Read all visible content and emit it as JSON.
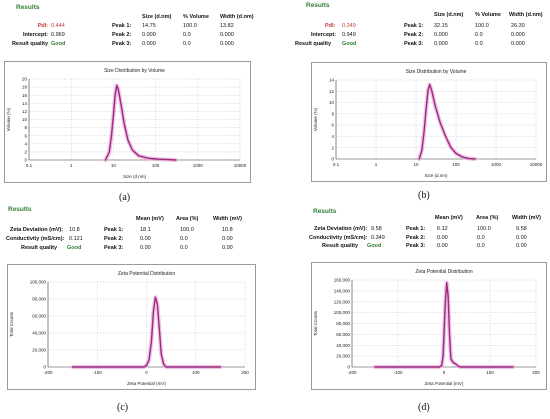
{
  "panels": [
    {
      "id": "a",
      "results_title": "Results",
      "left": [
        {
          "label": "PdI:",
          "value": "0.444"
        },
        {
          "label": "Intercept:",
          "value": "0.969"
        },
        {
          "label": "Result quality",
          "value": "Good"
        }
      ],
      "columns": [
        "Size (d.nm)",
        "% Volume",
        "Width (d.nm)"
      ],
      "peaks": [
        {
          "label": "Peak 1:",
          "values": [
            "14.75",
            "100.0",
            "13.82"
          ]
        },
        {
          "label": "Peak 2:",
          "values": [
            "0.000",
            "0.0",
            "0.000"
          ]
        },
        {
          "label": "Peak 3:",
          "values": [
            "0.000",
            "0.0",
            "0.000"
          ]
        }
      ],
      "caption": "(a)"
    },
    {
      "id": "b",
      "results_title": "Results",
      "left": [
        {
          "label": "PdI:",
          "value": "0.249"
        },
        {
          "label": "Intercept:",
          "value": "0.949"
        },
        {
          "label": "Result quality",
          "value": "Good"
        }
      ],
      "columns": [
        "Size (d.nm)",
        "% Volume",
        "Width (d.nm)"
      ],
      "peaks": [
        {
          "label": "Peak 1:",
          "values": [
            "32.15",
            "100.0",
            "26.30"
          ]
        },
        {
          "label": "Peak 2:",
          "values": [
            "0.000",
            "0.0",
            "0.000"
          ]
        },
        {
          "label": "Peak 3:",
          "values": [
            "0.000",
            "0.0",
            "0.000"
          ]
        }
      ],
      "caption": "(b)"
    },
    {
      "id": "c",
      "results_title": "Results",
      "left": [
        {
          "label": "Zeta Deviation (mV):",
          "value": "10.8"
        },
        {
          "label": "Conductivity (mS/cm):",
          "value": "0.121"
        },
        {
          "label": "Result quality",
          "value": "Good"
        }
      ],
      "columns": [
        "Mean (mV)",
        "Area (%)",
        "Width (mV)"
      ],
      "peaks": [
        {
          "label": "Peak 1:",
          "values": [
            "18.1",
            "100.0",
            "10.8"
          ]
        },
        {
          "label": "Peak 2:",
          "values": [
            "0.00",
            "0.0",
            "0.00"
          ]
        },
        {
          "label": "Peak 3:",
          "values": [
            "0.00",
            "0.0",
            "0.00"
          ]
        }
      ],
      "caption": "(c)"
    },
    {
      "id": "d",
      "results_title": "Results",
      "left": [
        {
          "label": "Zeta Deviation (mV):",
          "value": "9.58"
        },
        {
          "label": "Conductivity (mS/cm):",
          "value": "0.349"
        },
        {
          "label": "Result quality",
          "value": "Good"
        }
      ],
      "columns": [
        "Mean (mV)",
        "Area (%)",
        "Width (mV)"
      ],
      "peaks": [
        {
          "label": "Peak 1:",
          "values": [
            "6.12",
            "100.0",
            "9.58"
          ]
        },
        {
          "label": "Peak 2:",
          "values": [
            "0.00",
            "0.0",
            "0.00"
          ]
        },
        {
          "label": "Peak 3:",
          "values": [
            "0.00",
            "0.0",
            "0.00"
          ]
        }
      ],
      "caption": "(d)"
    }
  ],
  "chart_data": [
    {
      "type": "line",
      "title": "Size Distribution by Volume",
      "xlabel": "Size (d.nm)",
      "ylabel": "Volume (%)",
      "xscale": "log",
      "xlim": [
        0.1,
        10000
      ],
      "ylim": [
        0,
        20
      ],
      "xticks": [
        "0.1",
        "1",
        "10",
        "100",
        "1000",
        "10000"
      ],
      "yticks": [
        "0",
        "2",
        "4",
        "6",
        "8",
        "10",
        "12",
        "14",
        "16",
        "18",
        "20"
      ],
      "grid": true,
      "color": "#9c2a7d",
      "series": [
        {
          "x": [
            6.5,
            8,
            9,
            10,
            11,
            12,
            13,
            15,
            18,
            22,
            28,
            40,
            70,
            120,
            200,
            300
          ],
          "y": [
            0,
            2,
            6,
            11,
            16,
            18.4,
            17.5,
            14,
            9,
            5,
            2.5,
            1,
            0.4,
            0.2,
            0.1,
            0
          ]
        }
      ]
    },
    {
      "type": "line",
      "title": "Size Distribution by Volume",
      "xlabel": "Size (d.nm)",
      "ylabel": "Volume (%)",
      "xscale": "log",
      "xlim": [
        0.1,
        10000
      ],
      "ylim": [
        0,
        14
      ],
      "xticks": [
        "0.1",
        "1",
        "10",
        "100",
        "1000",
        "10000"
      ],
      "yticks": [
        "0",
        "2",
        "4",
        "6",
        "8",
        "10",
        "12",
        "14"
      ],
      "grid": true,
      "color": "#9c2a7d",
      "series": [
        {
          "x": [
            12,
            14,
            16,
            18,
            20,
            22,
            25,
            30,
            40,
            55,
            75,
            100,
            140,
            200,
            300
          ],
          "y": [
            0,
            1.5,
            5,
            9,
            12.2,
            13.2,
            12,
            9.5,
            6.5,
            4,
            2,
            1,
            0.4,
            0.1,
            0
          ]
        }
      ]
    },
    {
      "type": "line",
      "title": "Zeta Potential Distribution",
      "xlabel": "Zeta Potential (mV)",
      "ylabel": "Total Counts",
      "xlim": [
        -200,
        200
      ],
      "ylim": [
        0,
        100000
      ],
      "xticks": [
        "-200",
        "-100",
        "0",
        "100",
        "200"
      ],
      "yticks": [
        "0",
        "20,000",
        "40,000",
        "60,000",
        "80,000",
        "100,000"
      ],
      "grid": true,
      "color": "#9c2a7d",
      "series": [
        {
          "x": [
            -150,
            -5,
            0,
            5,
            10,
            14,
            18,
            22,
            26,
            30,
            35,
            40,
            150
          ],
          "y": [
            0,
            0,
            2000,
            8000,
            30000,
            65000,
            82000,
            74000,
            45000,
            15000,
            3000,
            0,
            0
          ]
        }
      ]
    },
    {
      "type": "line",
      "title": "Zeta Potential Distribution",
      "xlabel": "Zeta Potential (mV)",
      "ylabel": "Total Counts",
      "xlim": [
        -200,
        200
      ],
      "ylim": [
        0,
        160000
      ],
      "xticks": [
        "-200",
        "-100",
        "0",
        "100",
        "200"
      ],
      "yticks": [
        "0",
        "20,000",
        "40,000",
        "60,000",
        "80,000",
        "100,000",
        "120,000",
        "140,000",
        "160,000"
      ],
      "grid": true,
      "color": "#9c2a7d",
      "series": [
        {
          "x": [
            -150,
            -10,
            -5,
            -2,
            0,
            3,
            6,
            9,
            12,
            15,
            20,
            25,
            30,
            35,
            150
          ],
          "y": [
            0,
            0,
            3000,
            20000,
            60000,
            120000,
            155000,
            130000,
            60000,
            15000,
            8000,
            6000,
            2000,
            0,
            0
          ]
        }
      ]
    }
  ]
}
